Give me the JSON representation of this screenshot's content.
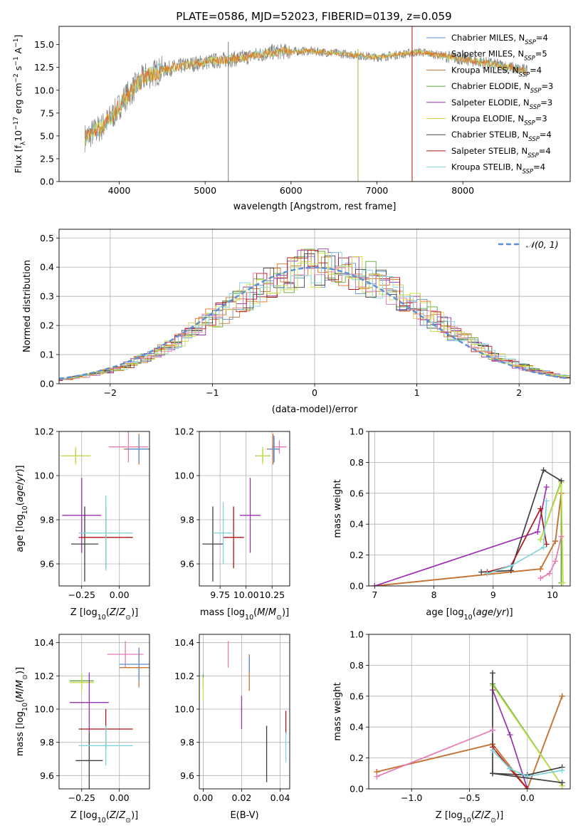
{
  "figure": {
    "title": "PLATE=0586, MJD=52023, FIBERID=0139, z=0.059"
  },
  "model_colors": {
    "Chabrier MILES": "#5b8fd6",
    "Salpeter MILES": "#e2701f",
    "Kroupa MILES": "#c87533",
    "Chabrier ELODIE": "#5ea33a",
    "Salpeter ELODIE": "#9b30b0",
    "Kroupa ELODIE": "#d4d44a",
    "Chabrier STELIB": "#404040",
    "Salpeter STELIB": "#b01515",
    "Kroupa STELIB": "#7fd4dc",
    "data": "#7f7f7f",
    "gaussian": "#5b8fd6",
    "pink": "#e67ab4",
    "lime": "#c3e04a"
  },
  "chart_data": [
    {
      "id": "spectrum",
      "type": "line",
      "xlabel": "wavelength [Angstrom, rest frame]",
      "ylabel_html": "Flux [f<tspan baseline-shift='sub' font-size='9'>λ</tspan>10<tspan baseline-shift='super' font-size='9'>−17</tspan> erg cm<tspan baseline-shift='super' font-size='9'>−2</tspan> s<tspan baseline-shift='super' font-size='9'>−1</tspan> A<tspan baseline-shift='super' font-size='9'>−1</tspan>]",
      "xlim": [
        3300,
        9250
      ],
      "ylim": [
        0,
        17
      ],
      "xticks": [
        4000,
        5000,
        6000,
        7000,
        8000
      ],
      "yticks": [
        0.0,
        2.5,
        5.0,
        7.5,
        10.0,
        12.5,
        15.0
      ],
      "continuum": {
        "x": [
          3600,
          3800,
          3950,
          4050,
          4300,
          4500,
          4800,
          5100,
          5400,
          5800,
          6200,
          6600,
          7000,
          7500,
          8000,
          8400,
          8700
        ],
        "y": [
          4.8,
          6.0,
          7.5,
          9.0,
          11.5,
          12.2,
          12.8,
          13.2,
          13.5,
          14.2,
          14.3,
          14.0,
          13.6,
          14.2,
          13.4,
          12.8,
          12.2
        ]
      },
      "legend": [
        {
          "label": "Chabrier MILES, N_SSP=4",
          "text": "Chabrier MILES, N",
          "sub": "SSP",
          "tail": "=4"
        },
        {
          "label": "Salpeter MILES, N_SSP=5",
          "text": "Salpeter MILES, N",
          "sub": "SSP",
          "tail": "=5"
        },
        {
          "label": "Kroupa MILES, N_SSP=4",
          "text": "Kroupa MILES, N",
          "sub": "SSP",
          "tail": "=4"
        },
        {
          "label": "Chabrier ELODIE, N_SSP=3",
          "text": "Chabrier ELODIE, N",
          "sub": "SSP",
          "tail": "=3"
        },
        {
          "label": "Salpeter ELODIE, N_SSP=3",
          "text": "Salpeter ELODIE, N",
          "sub": "SSP",
          "tail": "=3"
        },
        {
          "label": "Kroupa ELODIE, N_SSP=3",
          "text": "Kroupa ELODIE, N",
          "sub": "SSP",
          "tail": "=3"
        },
        {
          "label": "Chabrier STELIB, N_SSP=4",
          "text": "Chabrier STELIB, N",
          "sub": "SSP",
          "tail": "=4"
        },
        {
          "label": "Salpeter STELIB, N_SSP=4",
          "text": "Salpeter STELIB, N",
          "sub": "SSP",
          "tail": "=4"
        },
        {
          "label": "Kroupa STELIB, N_SSP=4",
          "text": "Kroupa STELIB, N",
          "sub": "SSP",
          "tail": "=4"
        }
      ],
      "spikes": [
        {
          "x": 5270,
          "y0": 0,
          "y1": 15.3,
          "color": "#7f7f7f"
        },
        {
          "x": 6780,
          "y0": 0,
          "y1": 14.5,
          "color": "#b5a642"
        },
        {
          "x": 7410,
          "y0": 0,
          "y1": 17,
          "color": "#b01515"
        }
      ]
    },
    {
      "id": "residuals",
      "type": "histogram",
      "xlabel": "(data-model)/error",
      "ylabel": "Normed distribution",
      "xlim": [
        -2.5,
        2.5
      ],
      "ylim": [
        0,
        0.53
      ],
      "xticks": [
        -2,
        -1,
        0,
        1,
        2
      ],
      "yticks": [
        0.0,
        0.1,
        0.2,
        0.3,
        0.4,
        0.5
      ],
      "legend_label": "N(0,1)",
      "bin_width": 0.1
    },
    {
      "id": "age_vs_Z",
      "type": "scatter",
      "xlabel": "Z [log10(Z/Z☉)]",
      "ylabel": "age [log10(age/yr)]",
      "xlim": [
        -0.4,
        0.2
      ],
      "ylim": [
        9.5,
        10.2
      ],
      "xticks": [
        -0.25,
        0.0
      ],
      "yticks": [
        9.6,
        9.8,
        10.0,
        10.2
      ],
      "points": [
        {
          "x": -0.29,
          "y": 10.09,
          "dx": 0.09,
          "dy": 0.03,
          "color": "#5ea33a"
        },
        {
          "x": -0.29,
          "y": 10.09,
          "dx": 0.1,
          "dy": 0.04,
          "color": "#c3e04a"
        },
        {
          "x": 0.06,
          "y": 10.13,
          "dx": 0.13,
          "dy": 0.07,
          "color": "#e67ab4"
        },
        {
          "x": 0.13,
          "y": 10.12,
          "dx": 0.1,
          "dy": 0.07,
          "color": "#c87533"
        },
        {
          "x": 0.13,
          "y": 10.12,
          "dx": 0.08,
          "dy": 0.06,
          "color": "#5b8fd6"
        },
        {
          "x": -0.25,
          "y": 9.82,
          "dx": 0.13,
          "dy": 0.17,
          "color": "#9b30b0"
        },
        {
          "x": -0.23,
          "y": 9.69,
          "dx": 0.09,
          "dy": 0.17,
          "color": "#404040"
        },
        {
          "x": -0.09,
          "y": 9.72,
          "dx": 0.18,
          "dy": 0.14,
          "color": "#b01515"
        },
        {
          "x": -0.09,
          "y": 9.74,
          "dx": 0.18,
          "dy": 0.17,
          "color": "#7fd4dc"
        }
      ]
    },
    {
      "id": "age_vs_mass",
      "type": "scatter",
      "xlabel": "mass [log10(M/M☉)]",
      "ylabel": "",
      "xlim": [
        9.55,
        10.42
      ],
      "ylim": [
        9.5,
        10.2
      ],
      "xticks": [
        9.75,
        10.0,
        10.25
      ],
      "yticks": [
        9.6,
        9.8,
        10.0,
        10.2
      ],
      "points": [
        {
          "x": 10.16,
          "y": 10.09,
          "dx": 0.07,
          "dy": 0.03,
          "color": "#5ea33a"
        },
        {
          "x": 10.16,
          "y": 10.09,
          "dx": 0.06,
          "dy": 0.04,
          "color": "#c3e04a"
        },
        {
          "x": 10.32,
          "y": 10.13,
          "dx": 0.07,
          "dy": 0.03,
          "color": "#e67ab4"
        },
        {
          "x": 10.26,
          "y": 10.12,
          "dx": 0.06,
          "dy": 0.07,
          "color": "#c87533"
        },
        {
          "x": 10.27,
          "y": 10.12,
          "dx": 0.05,
          "dy": 0.06,
          "color": "#5b8fd6"
        },
        {
          "x": 10.04,
          "y": 9.82,
          "dx": 0.1,
          "dy": 0.17,
          "color": "#9b30b0"
        },
        {
          "x": 9.68,
          "y": 9.69,
          "dx": 0.1,
          "dy": 0.17,
          "color": "#404040"
        },
        {
          "x": 9.88,
          "y": 9.72,
          "dx": 0.1,
          "dy": 0.14,
          "color": "#b01515"
        },
        {
          "x": 9.78,
          "y": 9.74,
          "dx": 0.1,
          "dy": 0.14,
          "color": "#7fd4dc"
        }
      ]
    },
    {
      "id": "massweight_vs_age",
      "type": "line",
      "xlabel": "age [log10(age/yr)]",
      "ylabel": "mass weight",
      "xlim": [
        6.9,
        10.3
      ],
      "ylim": [
        0,
        1
      ],
      "xticks": [
        7,
        8,
        9,
        10
      ],
      "yticks": [
        0.0,
        0.2,
        0.4,
        0.6,
        0.8,
        1.0
      ],
      "series": [
        {
          "color": "#5b8fd6",
          "x": [
            7.0,
            9.8,
            10.05,
            10.15
          ],
          "y": [
            0.0,
            0.11,
            0.29,
            0.6
          ]
        },
        {
          "color": "#e2701f",
          "x": [
            7.0,
            9.8,
            10.05,
            10.15
          ],
          "y": [
            0.0,
            0.11,
            0.29,
            0.6
          ]
        },
        {
          "color": "#c87533",
          "x": [
            7.0,
            9.8,
            10.05,
            10.15
          ],
          "y": [
            0.0,
            0.11,
            0.29,
            0.6
          ]
        },
        {
          "color": "#5ea33a",
          "x": [
            9.8,
            10.15,
            10.15
          ],
          "y": [
            0.3,
            0.68,
            0.02
          ]
        },
        {
          "color": "#9b30b0",
          "x": [
            7.0,
            9.75,
            9.9
          ],
          "y": [
            0.0,
            0.35,
            0.64
          ]
        },
        {
          "color": "#c3e04a",
          "x": [
            9.8,
            10.15,
            10.18
          ],
          "y": [
            0.3,
            0.67,
            0.02
          ]
        },
        {
          "color": "#404040",
          "x": [
            8.8,
            9.3,
            9.85,
            10.15
          ],
          "y": [
            0.09,
            0.1,
            0.75,
            0.68
          ]
        },
        {
          "color": "#b01515",
          "x": [
            8.9,
            9.3,
            9.8,
            9.9
          ],
          "y": [
            0.09,
            0.13,
            0.5,
            0.27
          ]
        },
        {
          "color": "#7fd4dc",
          "x": [
            8.9,
            9.3,
            9.85,
            9.9
          ],
          "y": [
            0.08,
            0.13,
            0.25,
            0.55
          ]
        },
        {
          "color": "#e67ab4",
          "x": [
            9.8,
            9.95,
            10.05,
            10.15
          ],
          "y": [
            0.05,
            0.08,
            0.16,
            0.32
          ]
        }
      ]
    },
    {
      "id": "mass_vs_Z",
      "type": "scatter",
      "xlabel": "Z [log10(Z/Z☉)]",
      "ylabel": "mass [log10(M/M☉)]",
      "xlim": [
        -0.4,
        0.2
      ],
      "ylim": [
        9.52,
        10.45
      ],
      "xticks": [
        -0.25,
        0.0
      ],
      "yticks": [
        9.6,
        9.8,
        10.0,
        10.2,
        10.4
      ],
      "points": [
        {
          "x": -0.25,
          "y": 10.17,
          "dx": 0.08,
          "dy": 0.03,
          "color": "#5ea33a"
        },
        {
          "x": -0.25,
          "y": 10.16,
          "dx": 0.08,
          "dy": 0.05,
          "color": "#c3e04a"
        },
        {
          "x": 0.04,
          "y": 10.33,
          "dx": 0.12,
          "dy": 0.08,
          "color": "#e67ab4"
        },
        {
          "x": 0.13,
          "y": 10.25,
          "dx": 0.13,
          "dy": 0.12,
          "color": "#c87533"
        },
        {
          "x": 0.13,
          "y": 10.27,
          "dx": 0.13,
          "dy": 0.1,
          "color": "#5b8fd6"
        },
        {
          "x": -0.2,
          "y": 10.04,
          "dx": 0.13,
          "dy": 0.18,
          "color": "#9b30b0"
        },
        {
          "x": -0.2,
          "y": 9.69,
          "dx": 0.09,
          "dy": 0.17,
          "color": "#404040"
        },
        {
          "x": -0.09,
          "y": 9.88,
          "dx": 0.18,
          "dy": 0.12,
          "color": "#b01515"
        },
        {
          "x": -0.09,
          "y": 9.78,
          "dx": 0.18,
          "dy": 0.12,
          "color": "#7fd4dc"
        }
      ]
    },
    {
      "id": "mass_vs_ebv",
      "type": "scatter",
      "xlabel": "E(B-V)",
      "ylabel": "",
      "xlim": [
        -0.002,
        0.045
      ],
      "ylim": [
        9.52,
        10.45
      ],
      "xticks": [
        0.0,
        0.02,
        0.04
      ],
      "yticks": [
        9.6,
        9.8,
        10.0,
        10.2,
        10.4
      ],
      "points": [
        {
          "x": 0.0,
          "y": 10.17,
          "dx": 0,
          "dy": 0.04,
          "color": "#5ea33a"
        },
        {
          "x": 0.0,
          "y": 10.12,
          "dx": 0,
          "dy": 0.07,
          "color": "#c3e04a"
        },
        {
          "x": 0.013,
          "y": 10.33,
          "dx": 0,
          "dy": 0.08,
          "color": "#e67ab4"
        },
        {
          "x": 0.024,
          "y": 10.22,
          "dx": 0,
          "dy": 0.11,
          "color": "#c87533"
        },
        {
          "x": 0.024,
          "y": 10.27,
          "dx": 0,
          "dy": 0.05,
          "color": "#5b8fd6"
        },
        {
          "x": 0.02,
          "y": 9.98,
          "dx": 0,
          "dy": 0.1,
          "color": "#9b30b0"
        },
        {
          "x": 0.033,
          "y": 9.73,
          "dx": 0,
          "dy": 0.17,
          "color": "#404040"
        },
        {
          "x": 0.043,
          "y": 9.92,
          "dx": 0,
          "dy": 0.07,
          "color": "#b01515"
        },
        {
          "x": 0.043,
          "y": 9.77,
          "dx": 0,
          "dy": 0.09,
          "color": "#7fd4dc"
        }
      ]
    },
    {
      "id": "massweight_vs_Z",
      "type": "line",
      "xlabel": "Z [log10(Z/Z☉)]",
      "ylabel": "mass weight",
      "xlim": [
        -1.37,
        0.37
      ],
      "ylim": [
        0,
        1
      ],
      "xticks": [
        -1.0,
        -0.5,
        0.0
      ],
      "yticks": [
        0.0,
        0.2,
        0.4,
        0.6,
        0.8,
        1.0
      ],
      "series": [
        {
          "color": "#5b8fd6",
          "x": [
            -1.3,
            -0.3,
            0.0,
            0.3
          ],
          "y": [
            0.11,
            0.29,
            0.0,
            0.6
          ]
        },
        {
          "color": "#e2701f",
          "x": [
            -1.3,
            -0.3,
            0.0,
            0.3
          ],
          "y": [
            0.11,
            0.29,
            0.0,
            0.6
          ]
        },
        {
          "color": "#c87533",
          "x": [
            -1.3,
            -0.3,
            0.0,
            0.3
          ],
          "y": [
            0.11,
            0.29,
            0.0,
            0.6
          ]
        },
        {
          "color": "#5ea33a",
          "x": [
            -0.3,
            0.3
          ],
          "y": [
            0.68,
            0.02
          ]
        },
        {
          "color": "#c3e04a",
          "x": [
            -0.3,
            0.3
          ],
          "y": [
            0.67,
            0.02
          ]
        },
        {
          "color": "#9b30b0",
          "x": [
            -0.3,
            -0.15,
            0.0
          ],
          "y": [
            0.64,
            0.35,
            0.0
          ]
        },
        {
          "color": "#404040",
          "x": [
            -0.3,
            -0.3,
            0.0,
            0.3
          ],
          "y": [
            0.75,
            0.1,
            0.09,
            0.14
          ]
        },
        {
          "color": "#b01515",
          "x": [
            -0.3,
            -0.15,
            0.0
          ],
          "y": [
            0.27,
            0.13,
            0.0
          ]
        },
        {
          "color": "#7fd4dc",
          "x": [
            -0.3,
            -0.15,
            0.0,
            0.3
          ],
          "y": [
            0.25,
            0.13,
            0.08,
            0.12
          ]
        },
        {
          "color": "#e67ab4",
          "x": [
            -1.3,
            -0.3
          ],
          "y": [
            0.08,
            0.38
          ]
        },
        {
          "color": "#404040",
          "x": [
            -0.3,
            0.3
          ],
          "y": [
            0.1,
            0.04
          ]
        }
      ]
    }
  ]
}
